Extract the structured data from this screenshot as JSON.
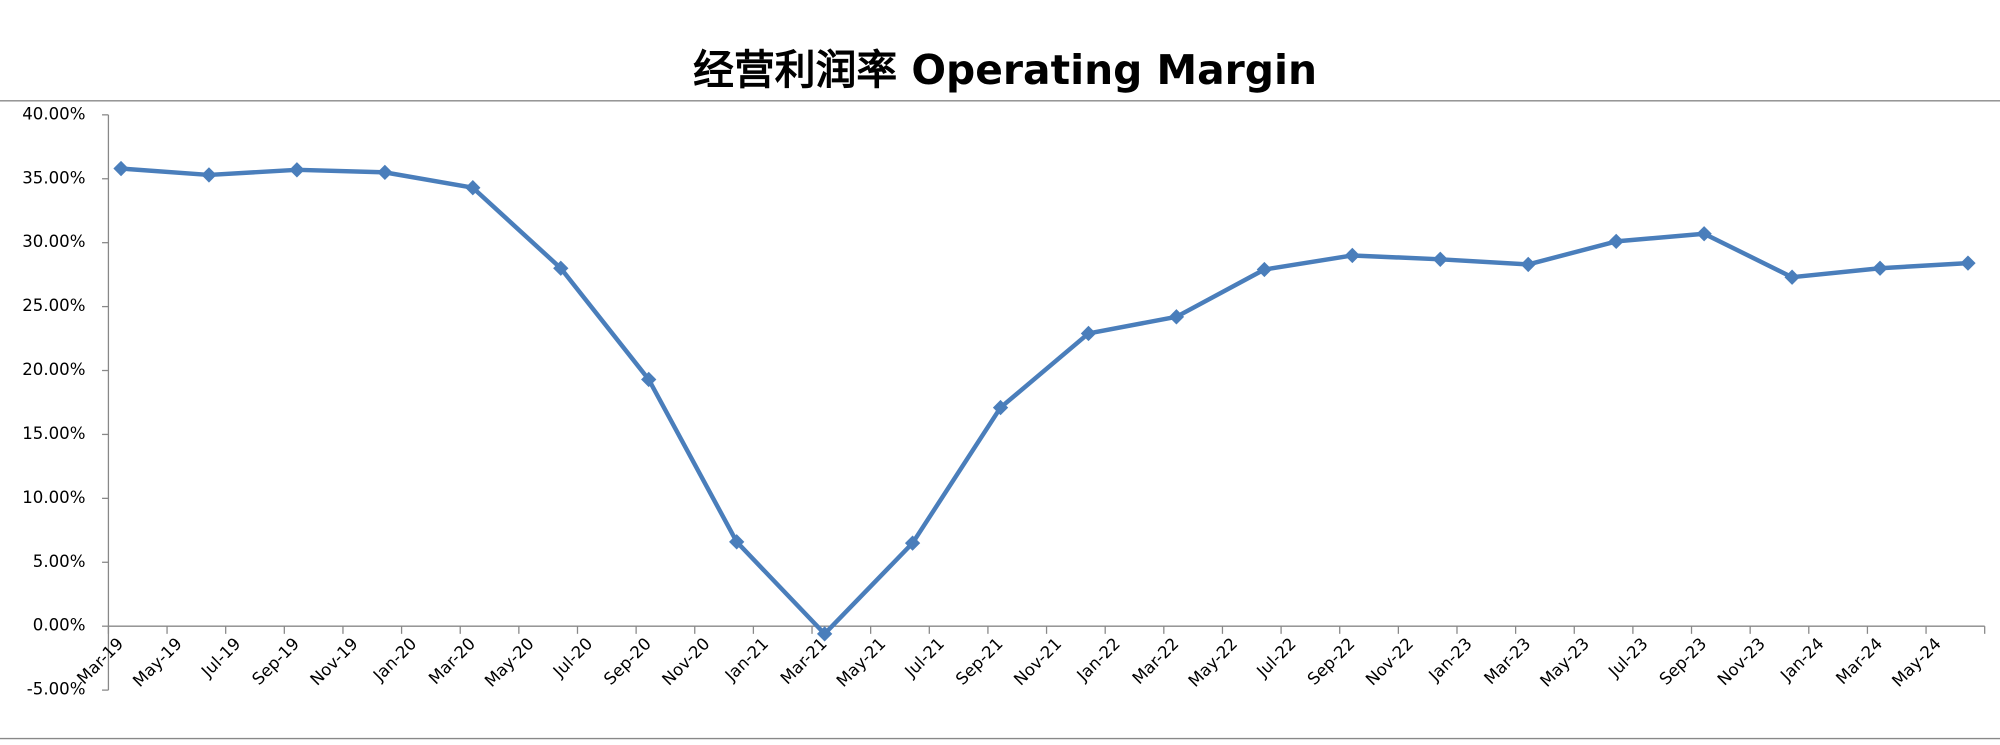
{
  "chart_data": {
    "type": "line",
    "title": "经营利润率 Operating Margin",
    "x": [
      "Mar-19",
      "Jun-19",
      "Sep-19",
      "Dec-19",
      "Mar-20",
      "Jun-20",
      "Sep-20",
      "Dec-20",
      "Mar-21",
      "Jun-21",
      "Sep-21",
      "Dec-21",
      "Mar-22",
      "Jun-22",
      "Sep-22",
      "Dec-22",
      "Mar-23",
      "Jun-23",
      "Sep-23",
      "Dec-23",
      "Mar-24",
      "Jun-24"
    ],
    "series": [
      {
        "color": "#4a7ebb",
        "values": [
          35.8,
          35.3,
          35.7,
          35.5,
          34.3,
          28.0,
          19.3,
          6.6,
          -0.6,
          6.5,
          17.1,
          22.9,
          24.2,
          27.9,
          29.0,
          28.7,
          28.3,
          30.1,
          30.7,
          27.3,
          28.0,
          28.4
        ]
      }
    ],
    "xlim": [
      "Mar-19",
      "Jul-24"
    ],
    "xticks": [
      "Mar-19",
      "May-19",
      "Jul-19",
      "Sep-19",
      "Nov-19",
      "Jan-20",
      "Mar-20",
      "May-20",
      "Jul-20",
      "Sep-20",
      "Nov-20",
      "Jan-21",
      "Mar-21",
      "May-21",
      "Jul-21",
      "Sep-21",
      "Nov-21",
      "Jan-22",
      "Mar-22",
      "May-22",
      "Jul-22",
      "Sep-22",
      "Nov-22",
      "Jan-23",
      "Mar-23",
      "May-23",
      "Jul-23",
      "Sep-23",
      "Nov-23",
      "Jan-24",
      "Mar-24",
      "May-24"
    ],
    "ylim": [
      -5,
      40
    ],
    "yticks": [
      {
        "value": -5,
        "label": "-5.00%"
      },
      {
        "value": 0,
        "label": "0.00%"
      },
      {
        "value": 5,
        "label": "5.00%"
      },
      {
        "value": 10,
        "label": "10.00%"
      },
      {
        "value": 15,
        "label": "15.00%"
      },
      {
        "value": 20,
        "label": "20.00%"
      },
      {
        "value": 25,
        "label": "25.00%"
      },
      {
        "value": 30,
        "label": "30.00%"
      },
      {
        "value": 35,
        "label": "35.00%"
      },
      {
        "value": 40,
        "label": "40.00%"
      }
    ],
    "grid": false
  }
}
